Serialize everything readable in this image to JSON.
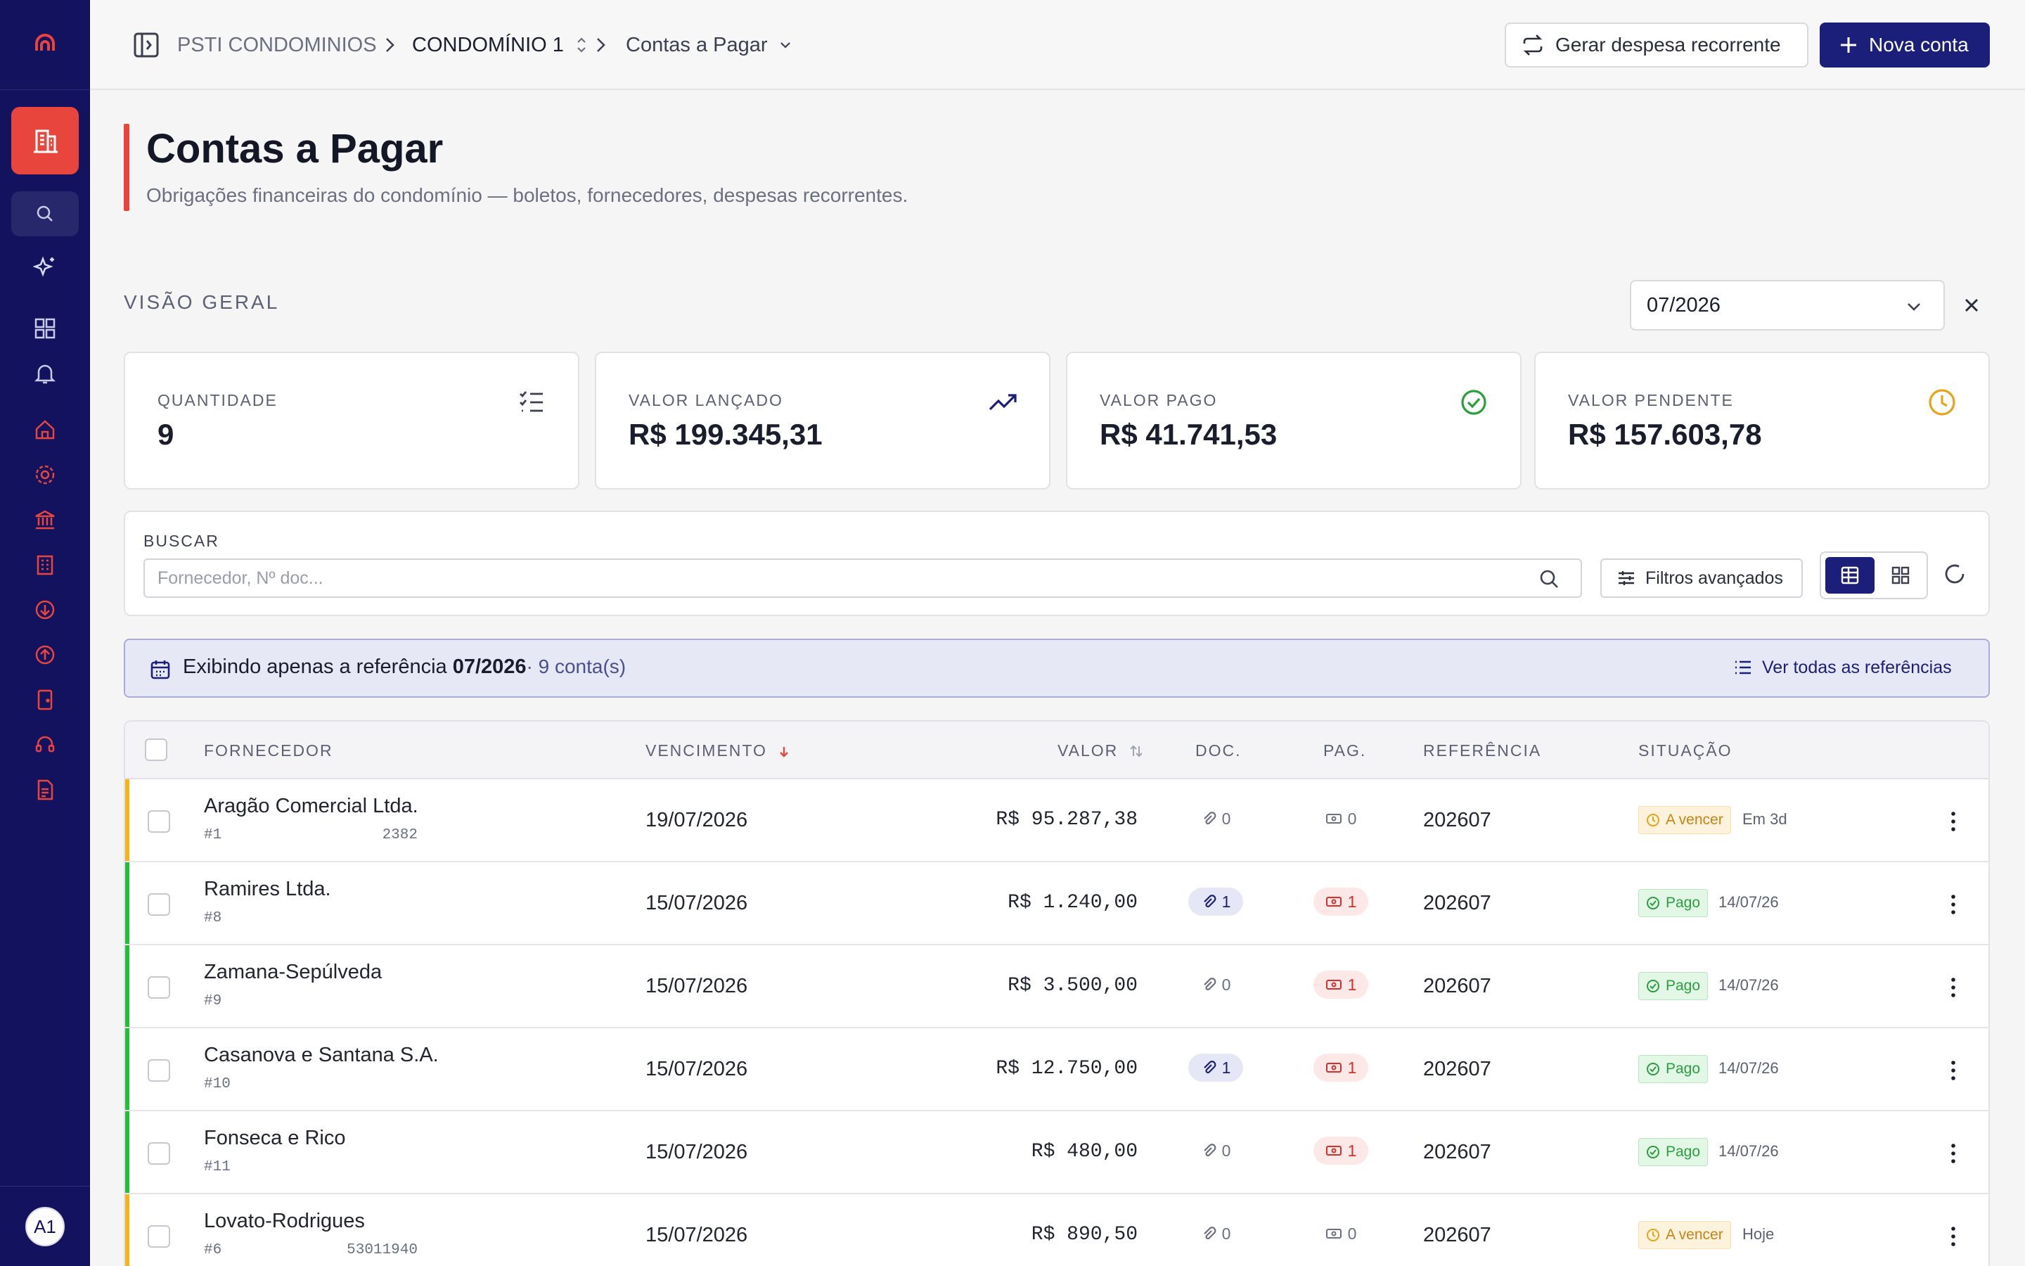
{
  "colors": {
    "sidebar_bg": "#12125e",
    "accent_red": "#e8453c",
    "primary": "#1c1f7a",
    "pending": "#e8a317",
    "paid": "#2aa03d"
  },
  "sidebar": {
    "avatar_initials": "A1",
    "icons": [
      "logo-icon",
      "building-icon",
      "search-icon",
      "sparkles-icon",
      "grid-icon",
      "bell-icon",
      "home-icon",
      "gear-icon",
      "bank-icon",
      "office-icon",
      "arrow-down-circle-icon",
      "arrow-up-circle-icon",
      "door-icon",
      "headset-icon",
      "report-icon"
    ]
  },
  "breadcrumb": {
    "root": "PSTI CONDOMINIOS",
    "condo": "CONDOMÍNIO 1",
    "page": "Contas a Pagar"
  },
  "actions": {
    "recurrent_label": "Gerar despesa recorrente",
    "new_label": "Nova conta"
  },
  "header": {
    "title": "Contas a Pagar",
    "subtitle": "Obrigações financeiras do condomínio — boletos, fornecedores, despesas recorrentes."
  },
  "overview": {
    "label": "VISÃO GERAL",
    "month": "07/2026"
  },
  "stats": [
    {
      "label": "QUANTIDADE",
      "value": "9",
      "icon": "checklist-icon"
    },
    {
      "label": "VALOR LANÇADO",
      "value": "R$ 199.345,31",
      "icon": "trending-up-icon"
    },
    {
      "label": "VALOR PAGO",
      "value": "R$ 41.741,53",
      "icon": "check-circle-icon"
    },
    {
      "label": "VALOR PENDENTE",
      "value": "R$ 157.603,78",
      "icon": "clock-icon"
    }
  ],
  "search": {
    "label": "BUSCAR",
    "placeholder": "Fornecedor, Nº doc...",
    "value": "",
    "filters_label": "Filtros avançados"
  },
  "reference_banner": {
    "prefix": "Exibindo apenas a referência",
    "reference": "07/2026",
    "count": "· 9 conta(s)",
    "link": "Ver todas as referências"
  },
  "table": {
    "columns": {
      "supplier": "FORNECEDOR",
      "due": "VENCIMENTO",
      "value": "VALOR",
      "doc": "DOC.",
      "pay": "PAG.",
      "reference": "REFERÊNCIA",
      "status": "SITUAÇÃO"
    },
    "rows": [
      {
        "supplier": "Aragão Comercial Ltda.",
        "id": "#1",
        "doc_number": "2382",
        "due": "19/07/2026",
        "value": "R$ 95.287,38",
        "docs": "0",
        "pays": "0",
        "reference": "202607",
        "status": "A vencer",
        "note": "Em 3d",
        "kind": "pending"
      },
      {
        "supplier": "Ramires Ltda.",
        "id": "#8",
        "doc_number": "",
        "due": "15/07/2026",
        "value": "R$ 1.240,00",
        "docs": "1",
        "pays": "1",
        "reference": "202607",
        "status": "Pago",
        "note": "14/07/26",
        "kind": "paid"
      },
      {
        "supplier": "Zamana-Sepúlveda",
        "id": "#9",
        "doc_number": "",
        "due": "15/07/2026",
        "value": "R$ 3.500,00",
        "docs": "0",
        "pays": "1",
        "reference": "202607",
        "status": "Pago",
        "note": "14/07/26",
        "kind": "paid"
      },
      {
        "supplier": "Casanova e Santana S.A.",
        "id": "#10",
        "doc_number": "",
        "due": "15/07/2026",
        "value": "R$ 12.750,00",
        "docs": "1",
        "pays": "1",
        "reference": "202607",
        "status": "Pago",
        "note": "14/07/26",
        "kind": "paid"
      },
      {
        "supplier": "Fonseca e Rico",
        "id": "#11",
        "doc_number": "",
        "due": "15/07/2026",
        "value": "R$ 480,00",
        "docs": "0",
        "pays": "1",
        "reference": "202607",
        "status": "Pago",
        "note": "14/07/26",
        "kind": "paid"
      },
      {
        "supplier": "Lovato-Rodrigues",
        "id": "#6",
        "doc_number": "53011940",
        "due": "15/07/2026",
        "value": "R$ 890,50",
        "docs": "0",
        "pays": "0",
        "reference": "202607",
        "status": "A vencer",
        "note": "Hoje",
        "kind": "pending"
      }
    ]
  }
}
